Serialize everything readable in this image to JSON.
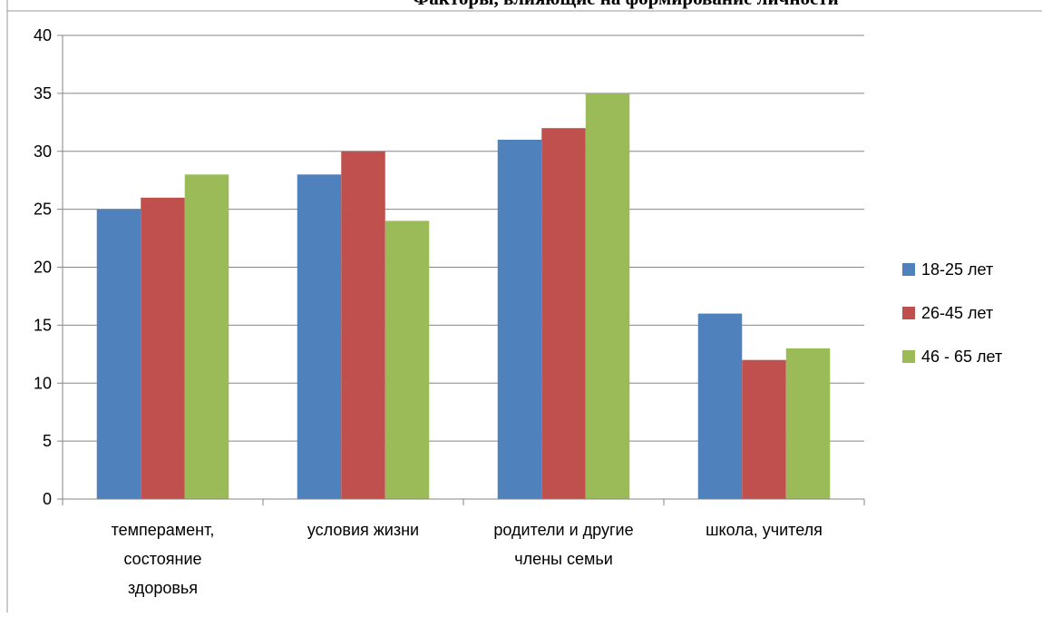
{
  "chart_data": {
    "type": "bar",
    "title": "Факторы, влияющие на формирование личности",
    "xlabel": "",
    "ylabel": "",
    "ylim": [
      0,
      40
    ],
    "ytick_step": 5,
    "grid": true,
    "legend_position": "right",
    "categories": [
      [
        "темперамент,",
        "состояние",
        "здоровья"
      ],
      [
        "условия жизни"
      ],
      [
        "родители и другие",
        "члены семьи"
      ],
      [
        "школа, учителя"
      ]
    ],
    "series": [
      {
        "name": "18-25 лет",
        "color": "#4F81BD",
        "values": [
          25,
          28,
          31,
          16
        ]
      },
      {
        "name": "26-45 лет",
        "color": "#C0504D",
        "values": [
          26,
          30,
          32,
          12
        ]
      },
      {
        "name": "46 - 65 лет",
        "color": "#9BBB59",
        "values": [
          28,
          24,
          35,
          13
        ]
      }
    ]
  }
}
